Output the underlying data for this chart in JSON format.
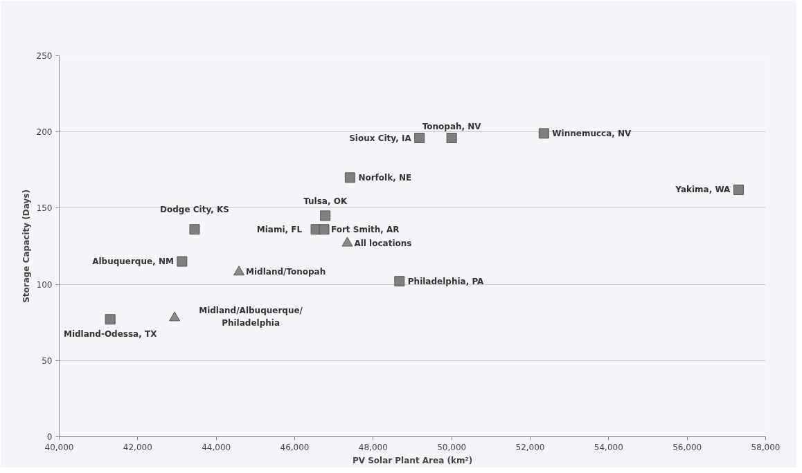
{
  "chart_data": {
    "type": "scatter",
    "xlabel": "PV Solar Plant Area (km²)",
    "ylabel": "Storage Capacity (Days)",
    "xlim": [
      40000,
      58000
    ],
    "xticks": [
      {
        "value": 40000,
        "label": "40,000"
      },
      {
        "value": 42000,
        "label": "42,000"
      },
      {
        "value": 44000,
        "label": "44,000"
      },
      {
        "value": 46000,
        "label": "46,000"
      },
      {
        "value": 48000,
        "label": "48,000"
      },
      {
        "value": 50000,
        "label": "50,000"
      },
      {
        "value": 52000,
        "label": "52,000"
      },
      {
        "value": 54000,
        "label": "54,000"
      },
      {
        "value": 56000,
        "label": "56,000"
      },
      {
        "value": 58000,
        "label": "58,000"
      }
    ],
    "ylim": [
      0,
      250
    ],
    "yticks": [
      0,
      50,
      100,
      150,
      200,
      250
    ],
    "grid": "y",
    "series": [
      {
        "type": "scatter",
        "marker": "square",
        "color": "#7f7f7f",
        "x": [
          41300,
          43130,
          43450,
          46780,
          46540,
          46750,
          47410,
          49180,
          50000,
          52350,
          57310,
          48670
        ],
        "values": [
          77,
          115,
          136,
          145,
          136,
          136,
          170,
          196,
          196,
          199,
          162,
          102
        ]
      },
      {
        "type": "scatter",
        "marker": "triangle",
        "color": "#8a8a8a",
        "x": [
          47340,
          44580,
          42940
        ],
        "values": [
          127,
          108,
          78
        ]
      }
    ],
    "annotations": [
      {
        "text": "Midland-Odessa, TX",
        "x": 41300,
        "y": 77
      },
      {
        "text": "Albuquerque, NM",
        "x": 43130,
        "y": 115
      },
      {
        "text": "Dodge City, KS",
        "x": 43450,
        "y": 136
      },
      {
        "text": "Tulsa, OK",
        "x": 46780,
        "y": 145
      },
      {
        "text": "Miami, FL",
        "x": 46540,
        "y": 136
      },
      {
        "text": "Fort Smith, AR",
        "x": 46750,
        "y": 136
      },
      {
        "text": "Norfolk, NE",
        "x": 47410,
        "y": 170
      },
      {
        "text": "Sioux City, IA",
        "x": 49180,
        "y": 196
      },
      {
        "text": "Tonopah, NV",
        "x": 50000,
        "y": 196
      },
      {
        "text": "Winnemucca, NV",
        "x": 52350,
        "y": 199
      },
      {
        "text": "Yakima, WA",
        "x": 57310,
        "y": 162
      },
      {
        "text": "Philadelphia, PA",
        "x": 48670,
        "y": 102
      },
      {
        "text": "All locations",
        "x": 47340,
        "y": 127
      },
      {
        "text": "Midland/Tonopah",
        "x": 44580,
        "y": 108
      },
      {
        "text": "Midland/Albuquerque/\nPhiladelphia",
        "x": 42940,
        "y": 78
      }
    ]
  }
}
